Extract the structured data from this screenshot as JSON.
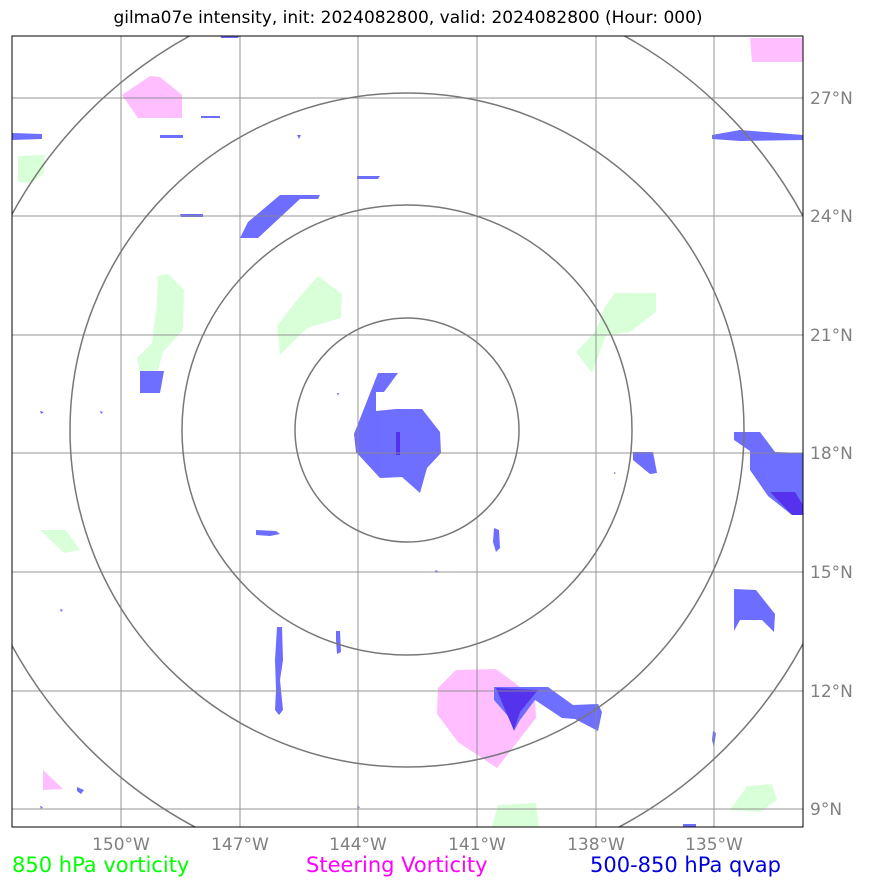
{
  "title": "gilma07e intensity, init: 2024082800, valid: 2024082800 (Hour: 000)",
  "legend": {
    "vort850": {
      "label": "850 hPa vorticity",
      "color": "#00ff00"
    },
    "steering": {
      "label": "Steering Vorticity",
      "color": "#ff00ff"
    },
    "qvap": {
      "label": "500-850 hPa qvap",
      "color": "#0000dd"
    }
  },
  "map": {
    "lon_labels": [
      "150°W",
      "147°W",
      "144°W",
      "141°W",
      "138°W",
      "135°W"
    ],
    "lat_labels": [
      "27°N",
      "24°N",
      "21°N",
      "18°N",
      "15°N",
      "12°N",
      "9°N"
    ],
    "lon_range": [
      -152.7,
      -132.7
    ],
    "lat_range": [
      8.5,
      28.5
    ],
    "center": {
      "lon": -142.7,
      "lat": 18.7
    },
    "range_rings": 4,
    "fill_colors": {
      "vort850": "#ccffcc",
      "steering": "#ffb3ff",
      "qvap": "#6666ff"
    }
  }
}
